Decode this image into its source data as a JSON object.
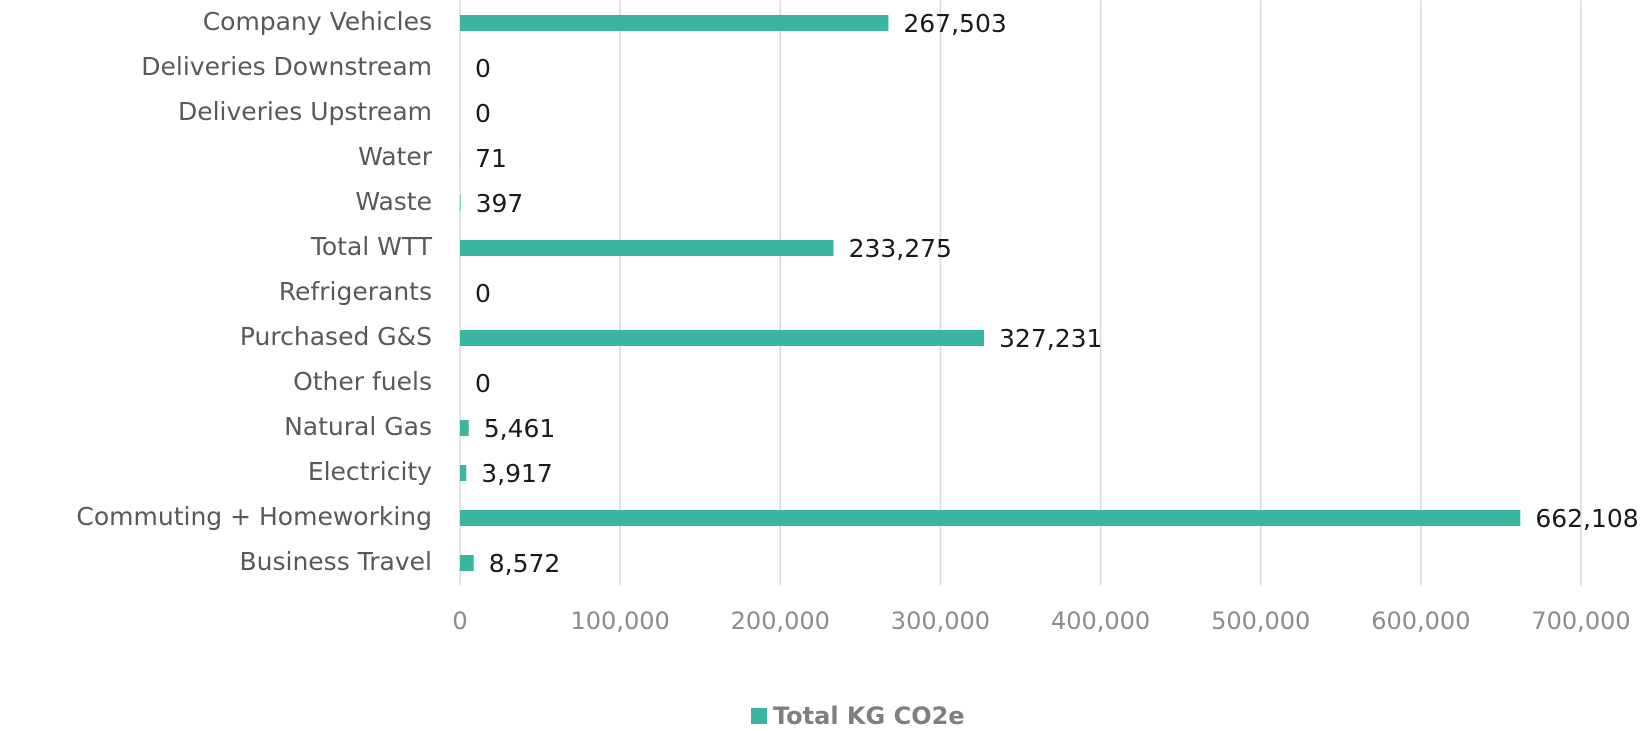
{
  "chart_data": {
    "type": "bar",
    "orientation": "horizontal",
    "categories": [
      "Company Vehicles",
      "Deliveries Downstream",
      "Deliveries Upstream",
      "Water",
      "Waste",
      "Total WTT",
      "Refrigerants",
      "Purchased G&S",
      "Other fuels",
      "Natural Gas",
      "Electricity",
      "Commuting + Homeworking",
      "Business Travel"
    ],
    "series": [
      {
        "name": "Total KG CO2e",
        "color": "#3bb5a0",
        "values": [
          267503,
          0,
          0,
          71,
          397,
          233275,
          0,
          327231,
          0,
          5461,
          3917,
          662108,
          8572
        ],
        "value_labels": [
          "267,503",
          "0",
          "0",
          "71",
          "397",
          "233,275",
          "0",
          "327,231",
          "0",
          "5,461",
          "3,917",
          "662,108",
          "8,572"
        ]
      }
    ],
    "xlim": [
      0,
      700000
    ],
    "xticks": [
      0,
      {
        "value": 100000,
        "label": "100,000"
      },
      {
        "value": 200000,
        "label": "200,000"
      },
      {
        "value": 300000,
        "label": "300,000"
      },
      {
        "value": 400000,
        "label": "400,000"
      },
      {
        "value": 500000,
        "label": "500,000"
      },
      {
        "value": 600000,
        "label": "600,000"
      },
      {
        "value": 700000,
        "label": "700,000"
      }
    ],
    "grid": true,
    "legend": "bottom"
  }
}
